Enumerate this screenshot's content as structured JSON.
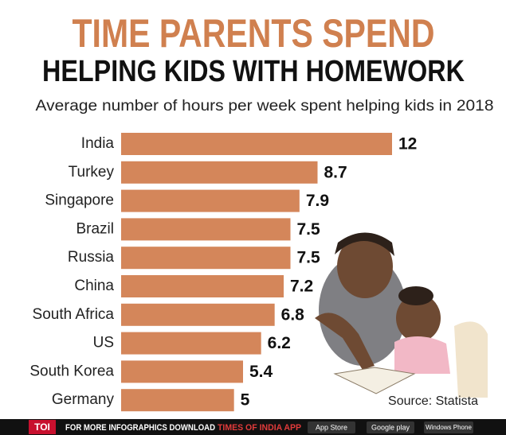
{
  "chart_data": {
    "type": "bar",
    "orientation": "horizontal",
    "title": "TIME PARENTS SPEND",
    "subtitle_line": "HELPING KIDS WITH HOMEWORK",
    "subtitle": "Average number of hours per week spent helping kids in 2018",
    "categories": [
      "India",
      "Turkey",
      "Singapore",
      "Brazil",
      "Russia",
      "China",
      "South Africa",
      "US",
      "South Korea",
      "Germany"
    ],
    "values": [
      12,
      8.7,
      7.9,
      7.5,
      7.5,
      7.2,
      6.8,
      6.2,
      5.4,
      5
    ],
    "color": "#d4865a",
    "source": "Source: Statista"
  },
  "footer": {
    "logo": "TOI",
    "text": "FOR MORE  INFOGRAPHICS DOWNLOAD",
    "app": "TIMES OF INDIA APP",
    "badges": [
      "App Store",
      "Google play",
      "Windows Phone"
    ]
  }
}
